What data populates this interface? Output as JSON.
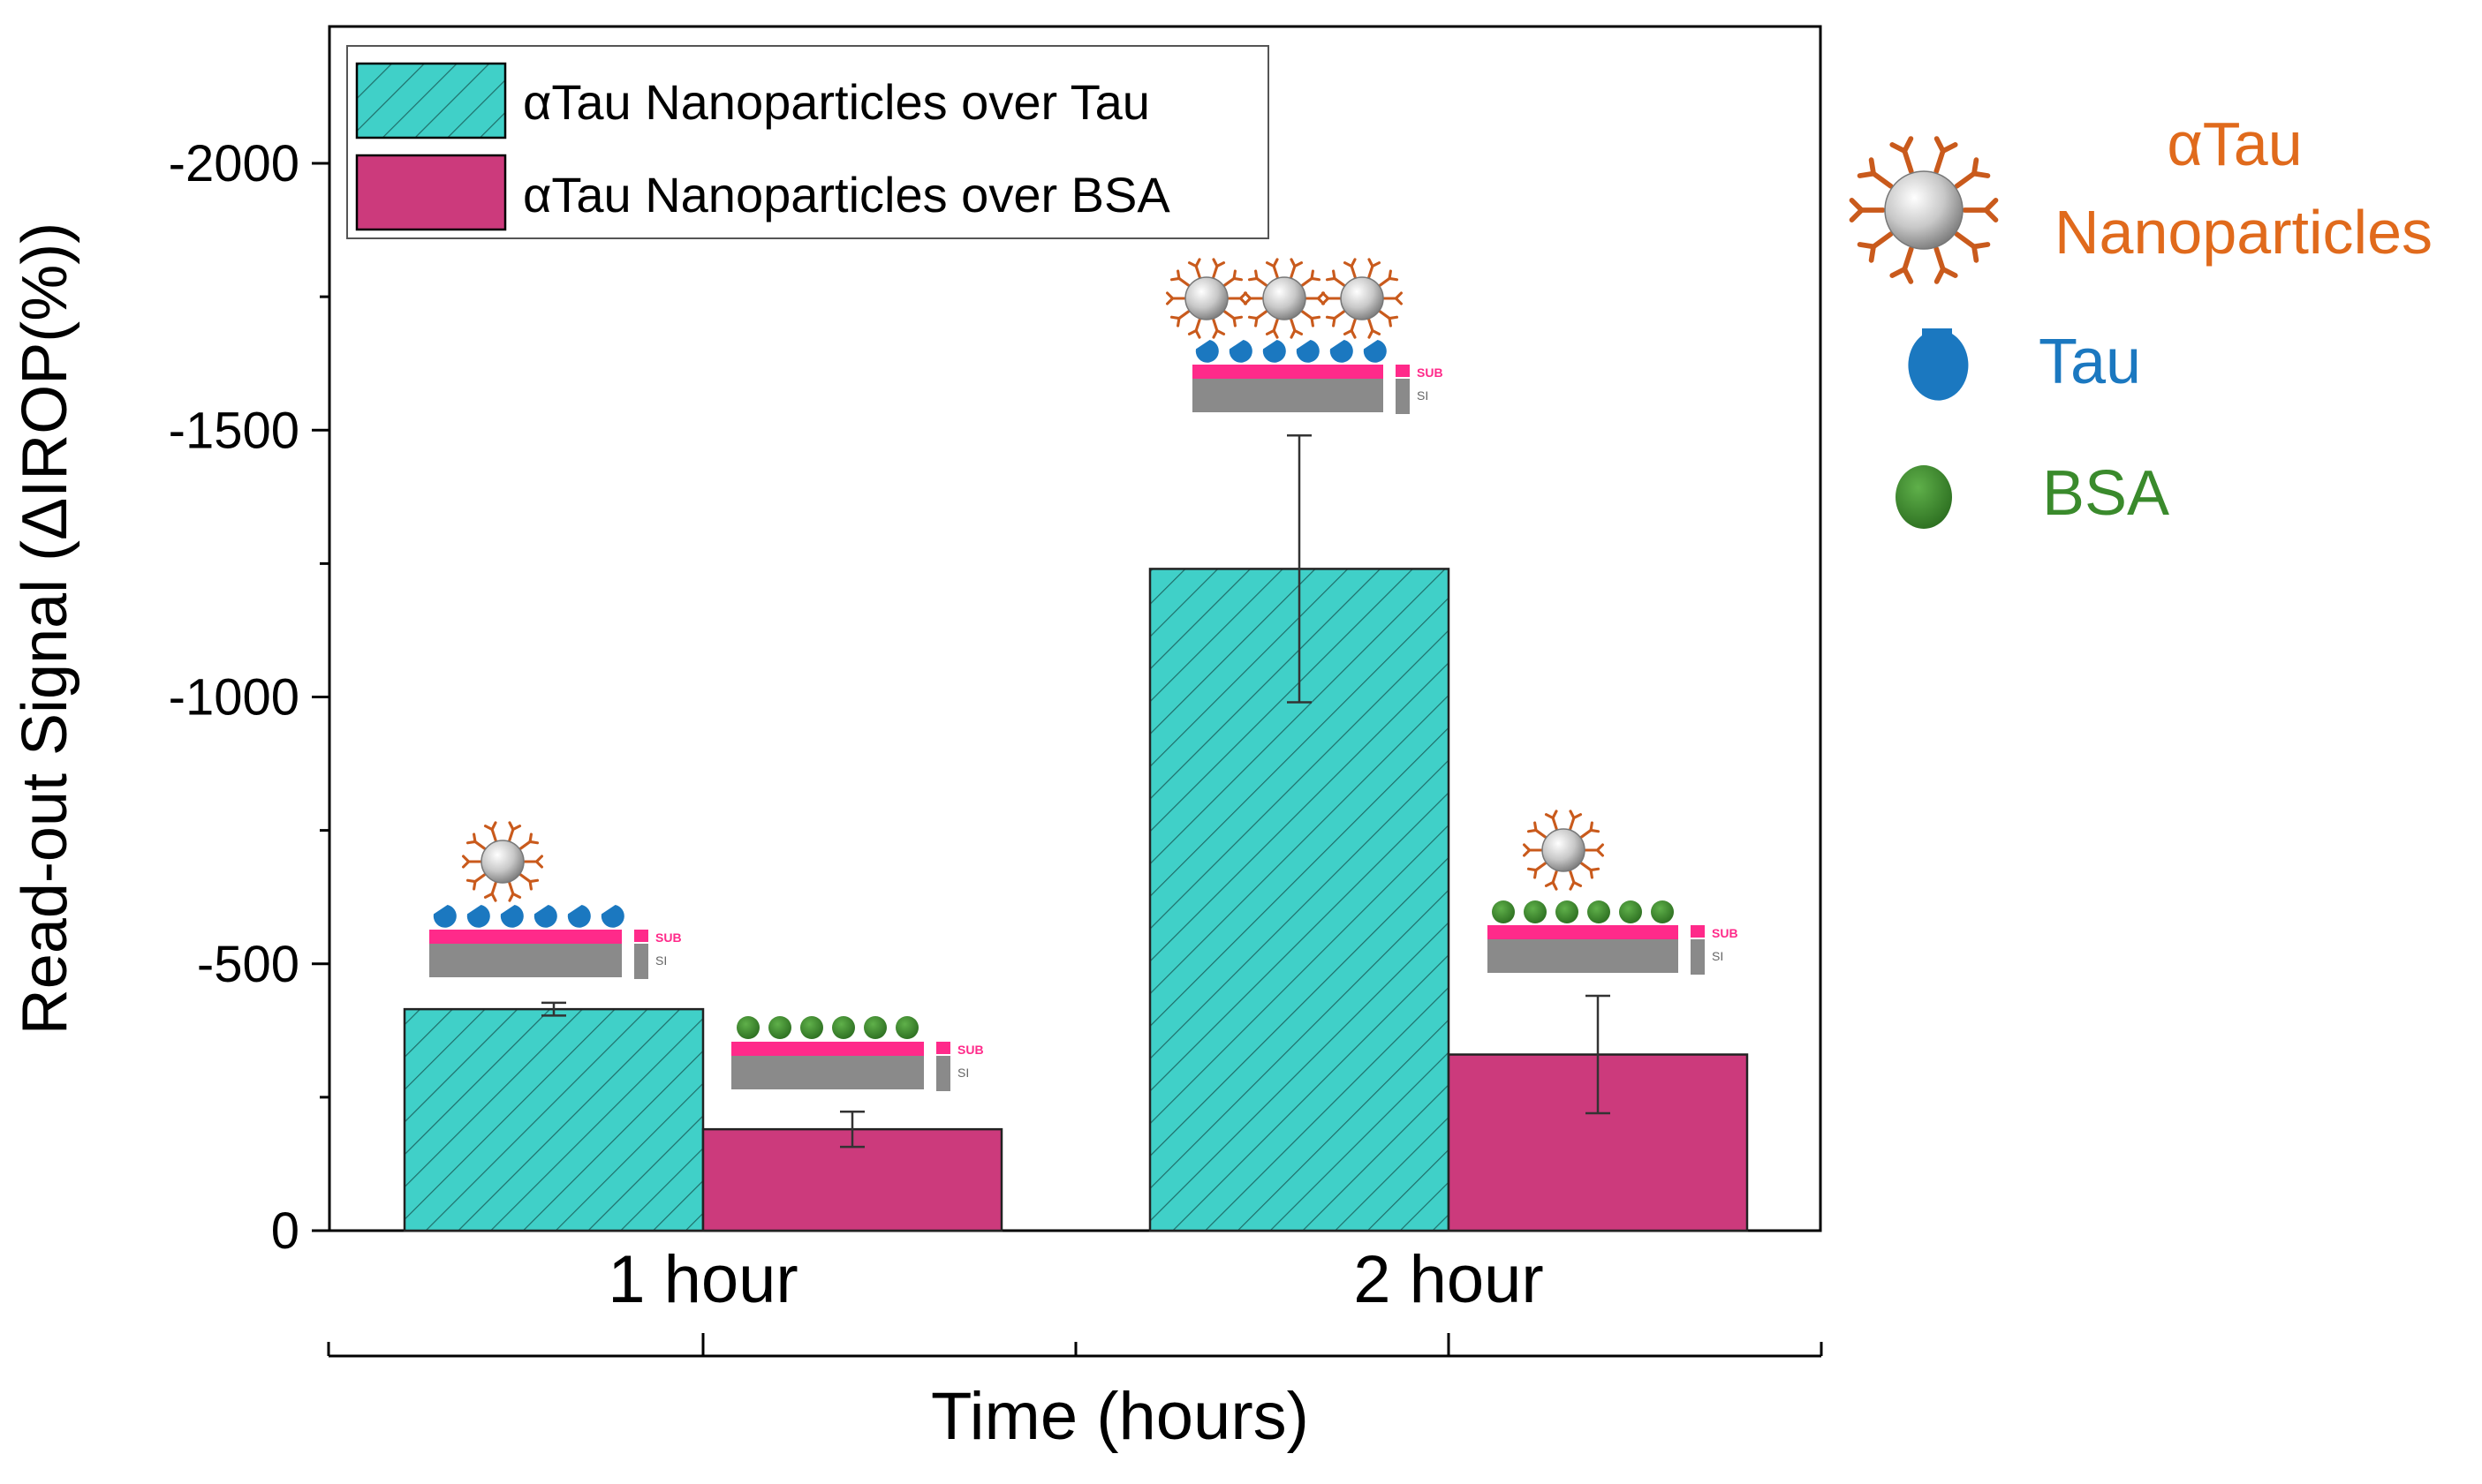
{
  "chart_data": {
    "type": "bar",
    "xlabel": "Time (hours)",
    "ylabel": "Read-out Signal (ΔIROP(%))",
    "ylim": [
      0,
      -2000
    ],
    "yticks": [
      0,
      -500,
      -1000,
      -1500,
      -2000
    ],
    "y_tick_labels": [
      "0",
      "-500",
      "-1000",
      "-1500",
      "-2000"
    ],
    "categories": [
      "1 hour",
      "2 hour"
    ],
    "series": [
      {
        "name": "αTau Nanoparticles over Tau",
        "color": "#40d0c8",
        "pattern": "diagonal-hatch",
        "values": [
          -415,
          -1240
        ],
        "errors": [
          12,
          250
        ]
      },
      {
        "name": "αTau Nanoparticles over BSA",
        "color": "#cc3a7c",
        "pattern": "solid",
        "values": [
          -190,
          -330
        ],
        "errors": [
          33,
          110
        ]
      }
    ],
    "legend_placement": "top-left",
    "inset_labels": {
      "sub": "SUB",
      "si": "SI"
    }
  },
  "side_legend": {
    "nanoparticle_label_line1": "αTau",
    "nanoparticle_label_line2": "Nanoparticles",
    "tau_label": "Tau",
    "bsa_label": "BSA",
    "colors": {
      "nanoparticle_text": "#e06a1c",
      "tau": "#1b78c0",
      "bsa": "#3a8a2c",
      "antibody": "#c95a1c",
      "sub_layer": "#ff2a8a",
      "si_layer": "#8a8a8a"
    }
  }
}
